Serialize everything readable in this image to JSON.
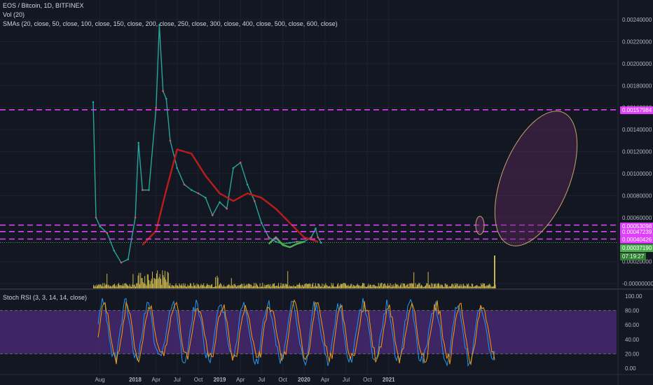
{
  "header": {
    "symbol_line": "EOS / Bitcoin, 1D, BITFINEX",
    "volume_line": "Vol (20)",
    "sma_line": "SMAs (20, close, 50, close, 100, close, 150, close, 200, close, 250, close, 300, close, 400, close, 500, close, 600, close)",
    "rsi_line": "Stoch RSI (3, 3, 14, 14, close)"
  },
  "price_tags": {
    "resistance_top": "0.00157984",
    "level_1": "0.00053098",
    "level_2": "0.00047239",
    "level_3": "0.00040426",
    "last_price": "0.00037190",
    "countdown": "07:19:27"
  },
  "colors": {
    "background": "#131722",
    "level_line": "#e040fb",
    "candle_up": "#26a69a",
    "candle_down": "#ef5350",
    "volume": "#c9b44a",
    "sma_long": "#b71c1c",
    "sma_short": "#7e57c2",
    "highlight_green": "#4caf50",
    "last_price_tag": "#4caf50",
    "rsi_band": "#4a2a75",
    "rsi_k": "#2196f3",
    "rsi_d": "#ff9800",
    "ellipse_stroke": "#c9a36b",
    "ellipse_fill": "#5c2a5c"
  },
  "chart_data": [
    {
      "type": "line",
      "series": [
        {
          "x": [
            "2017-07-03",
            "2017-07-15",
            "2017-08-01",
            "2017-09-01",
            "2017-10-01",
            "2017-11-01",
            "2017-12-01",
            "2018-01-01",
            "2018-01-15",
            "2018-02-01",
            "2018-03-01",
            "2018-04-01",
            "2018-04-15",
            "2018-05-01",
            "2018-05-15",
            "2018-06-01",
            "2018-07-01",
            "2018-08-01",
            "2018-09-01",
            "2018-10-01",
            "2018-11-01",
            "2018-12-01",
            "2019-01-01",
            "2019-02-01",
            "2019-03-01",
            "2019-04-01",
            "2019-05-01",
            "2019-06-01",
            "2019-07-01",
            "2019-08-01",
            "2019-09-01",
            "2019-10-01",
            "2019-11-01",
            "2019-12-01",
            "2020-01-01",
            "2020-02-01",
            "2020-02-20",
            "2020-03-01",
            "2020-03-15"
          ],
          "values": [
            0.00165,
            0.0006,
            0.00052,
            0.00046,
            0.0003,
            0.00019,
            0.00022,
            0.0006,
            0.00128,
            0.00085,
            0.00085,
            0.0016,
            0.00235,
            0.00175,
            0.00168,
            0.0013,
            0.00105,
            0.0009,
            0.00085,
            0.00082,
            0.00078,
            0.00062,
            0.00074,
            0.00068,
            0.00105,
            0.0011,
            0.0009,
            0.00075,
            0.00055,
            0.00042,
            0.00038,
            0.00036,
            0.00037,
            0.00038,
            0.00038,
            0.00042,
            0.0005,
            0.00042,
            0.00037
          ]
        },
        {
          "x": [
            "2018-02-01",
            "2018-04-01",
            "2018-05-15",
            "2018-07-01",
            "2018-09-01",
            "2018-11-01",
            "2019-01-01",
            "2019-03-01",
            "2019-05-01",
            "2019-07-01",
            "2019-09-01",
            "2019-11-01",
            "2020-01-01",
            "2020-03-01"
          ],
          "values": [
            0.00035,
            0.00048,
            0.00085,
            0.00122,
            0.00118,
            0.00098,
            0.00082,
            0.00075,
            0.00082,
            0.00078,
            0.00068,
            0.00055,
            0.00042,
            0.00038
          ]
        }
      ],
      "ylim": [
        -2e-05,
        0.0025
      ],
      "x_ticks": [
        "Aug",
        "2018",
        "Apr",
        "Jul",
        "Oct",
        "2019",
        "Apr",
        "Jul",
        "Oct",
        "2020",
        "Apr",
        "Jul",
        "Oct",
        "2021"
      ],
      "y_ticks": [
        "0.00240000",
        "0.00220000",
        "0.00200000",
        "0.00180000",
        "0.00160000",
        "0.00140000",
        "0.00120000",
        "0.00100000",
        "0.00080000",
        "0.00060000",
        "0.00020000",
        "-0.00000000"
      ],
      "horizontal_levels": [
        0.00157984,
        0.00053098,
        0.00047239,
        0.00040426
      ],
      "last_price": 0.0003719
    },
    {
      "type": "line",
      "ylim": [
        0,
        100
      ],
      "y_ticks": [
        "100.00",
        "80.00",
        "60.00",
        "40.00",
        "20.00",
        "0.00"
      ],
      "band": [
        20,
        80
      ]
    }
  ]
}
